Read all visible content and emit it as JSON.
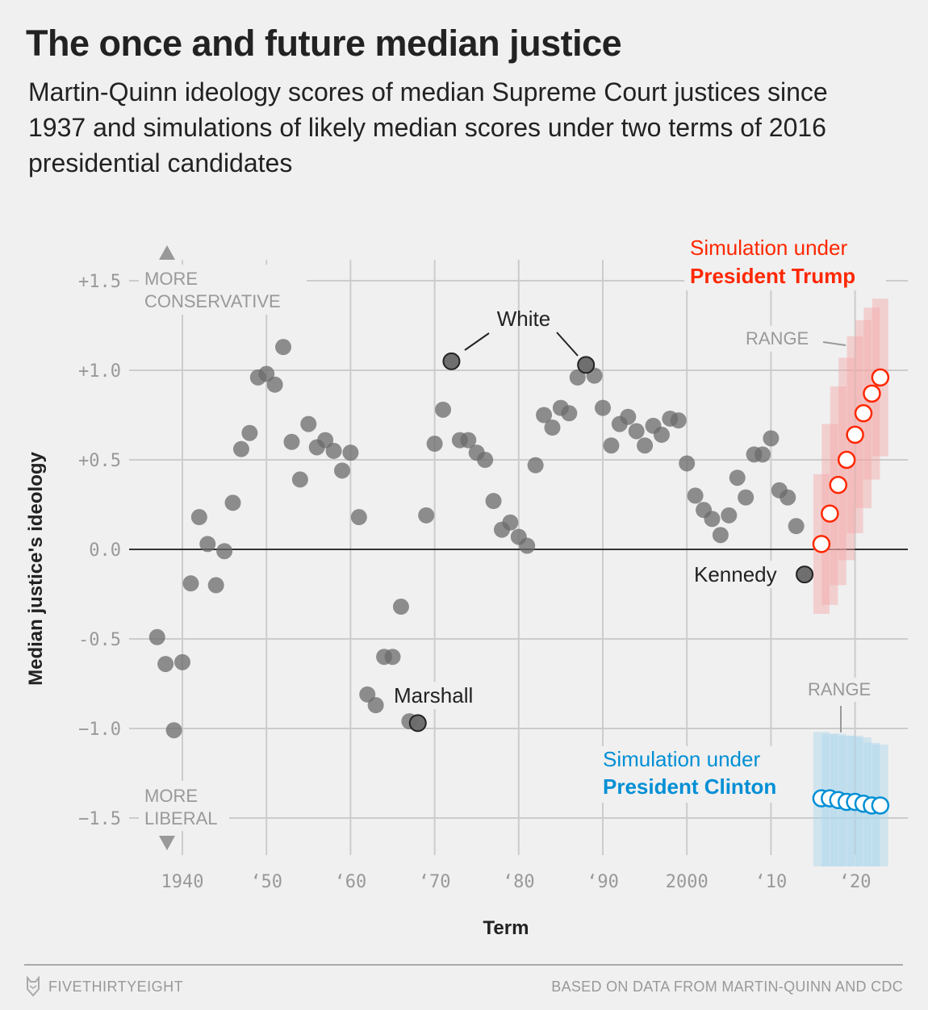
{
  "header": {
    "title": "The once and future median justice",
    "subtitle": "Martin-Quinn ideology scores of median Supreme Court justices since 1937 and simulations of likely median scores under two terms of 2016 presidential candidates"
  },
  "footer": {
    "brand": "FIVETHIRTYEIGHT",
    "brand_icon": "fox-logo-icon",
    "source": "BASED ON DATA FROM MARTIN-QUINN AND CDC"
  },
  "colors": {
    "background": "#f0f0f0",
    "historical": "#6b6b6b",
    "trump": "#ff2700",
    "trump_range": "#f4a6a6",
    "clinton": "#008fd5",
    "clinton_range": "#a9d4ea",
    "grid": "#cccccc"
  },
  "chart_data": {
    "type": "scatter",
    "title": "The once and future median justice",
    "xlabel": "Term",
    "ylabel": "Median justice's ideology",
    "xlim": [
      1935,
      2025
    ],
    "ylim": [
      -1.7,
      1.7
    ],
    "grid": true,
    "x_ticks": [
      1940,
      1950,
      1960,
      1970,
      1980,
      1990,
      2000,
      2010,
      2020
    ],
    "x_tick_labels": [
      "1940",
      "‘50",
      "‘60",
      "‘70",
      "‘80",
      "‘90",
      "2000",
      "‘10",
      "‘20"
    ],
    "y_ticks": [
      1.5,
      1.0,
      0.5,
      0.0,
      -0.5,
      -1.0,
      -1.5
    ],
    "y_tick_labels": [
      "+1.5",
      "+1.0",
      "+0.5",
      "0.0",
      "-0.5",
      "−1.0",
      "−1.5"
    ],
    "axis_notes": {
      "top": [
        "MORE",
        "CONSERVATIVE"
      ],
      "bottom": [
        "MORE",
        "LIBERAL"
      ]
    },
    "series": [
      {
        "name": "Historical median justice",
        "x": [
          1937,
          1938,
          1939,
          1940,
          1941,
          1942,
          1943,
          1944,
          1945,
          1946,
          1947,
          1948,
          1949,
          1950,
          1951,
          1952,
          1953,
          1954,
          1955,
          1956,
          1957,
          1958,
          1959,
          1960,
          1961,
          1962,
          1963,
          1964,
          1965,
          1966,
          1967,
          1968,
          1969,
          1970,
          1971,
          1972,
          1973,
          1974,
          1975,
          1976,
          1977,
          1978,
          1979,
          1980,
          1981,
          1982,
          1983,
          1984,
          1985,
          1986,
          1987,
          1988,
          1989,
          1990,
          1991,
          1992,
          1993,
          1994,
          1995,
          1996,
          1997,
          1998,
          1999,
          2000,
          2001,
          2002,
          2003,
          2004,
          2005,
          2006,
          2007,
          2008,
          2009,
          2010,
          2011,
          2012,
          2013,
          2014
        ],
        "y": [
          -0.49,
          -0.64,
          -1.01,
          -0.63,
          -0.19,
          0.18,
          0.03,
          -0.2,
          -0.01,
          0.26,
          0.56,
          0.65,
          0.96,
          0.98,
          0.92,
          1.13,
          0.6,
          0.39,
          0.7,
          0.57,
          0.61,
          0.55,
          0.44,
          0.54,
          0.18,
          -0.81,
          -0.87,
          -0.6,
          -0.6,
          -0.32,
          -0.96,
          -0.97,
          0.19,
          0.59,
          0.78,
          1.05,
          0.61,
          0.61,
          0.54,
          0.5,
          0.27,
          0.11,
          0.15,
          0.07,
          0.02,
          0.47,
          0.75,
          0.68,
          0.79,
          0.76,
          0.96,
          1.03,
          0.97,
          0.79,
          0.58,
          0.7,
          0.74,
          0.66,
          0.58,
          0.69,
          0.64,
          0.73,
          0.72,
          0.48,
          0.3,
          0.22,
          0.17,
          0.08,
          0.19,
          0.4,
          0.29,
          0.53,
          0.53,
          0.62,
          0.33,
          0.29,
          0.13,
          -0.14
        ]
      },
      {
        "name": "Simulation under President Trump",
        "x": [
          2016,
          2017,
          2018,
          2019,
          2020,
          2021,
          2022,
          2023
        ],
        "y": [
          0.03,
          0.2,
          0.36,
          0.5,
          0.64,
          0.76,
          0.87,
          0.96
        ],
        "range_high": [
          0.42,
          0.7,
          0.91,
          1.07,
          1.19,
          1.28,
          1.35,
          1.4
        ],
        "range_low": [
          -0.36,
          -0.31,
          -0.2,
          -0.06,
          0.09,
          0.23,
          0.39,
          0.52
        ]
      },
      {
        "name": "Simulation under President Clinton",
        "x": [
          2016,
          2017,
          2018,
          2019,
          2020,
          2021,
          2022,
          2023
        ],
        "y": [
          -1.39,
          -1.39,
          -1.4,
          -1.41,
          -1.41,
          -1.42,
          -1.43,
          -1.43
        ],
        "range_high": [
          -1.02,
          -1.03,
          -1.03,
          -1.04,
          -1.04,
          -1.05,
          -1.08,
          -1.09
        ],
        "range_low": [
          -1.77,
          -1.77,
          -1.77,
          -1.77,
          -1.77,
          -1.77,
          -1.77,
          -1.77
        ]
      }
    ],
    "annotations": [
      {
        "label": "White",
        "points": [
          [
            1972,
            1.05
          ],
          [
            1988,
            1.03
          ]
        ]
      },
      {
        "label": "Marshall",
        "points": [
          [
            1968,
            -0.97
          ]
        ]
      },
      {
        "label": "Kennedy",
        "points": [
          [
            2014,
            -0.14
          ]
        ]
      }
    ],
    "legend": {
      "trump": {
        "line1": "Simulation under",
        "line2": "President Trump",
        "placement": "top-right"
      },
      "clinton": {
        "line1": "Simulation under",
        "line2": "President Clinton",
        "placement": "bottom-right"
      },
      "range_label": "RANGE"
    }
  }
}
